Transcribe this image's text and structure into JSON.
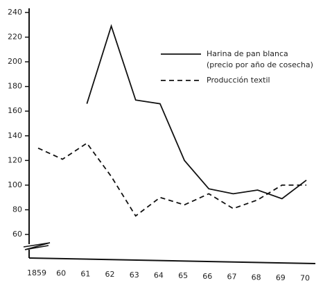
{
  "chart_data": {
    "type": "line",
    "categories": [
      "1859",
      "60",
      "61",
      "62",
      "63",
      "64",
      "65",
      "66",
      "67",
      "68",
      "69",
      "70"
    ],
    "series": [
      {
        "name": "Harina de pan blanca",
        "subname": "(precio por año de cosecha)",
        "color": "#111111",
        "dash": false,
        "values": [
          null,
          null,
          166,
          229,
          169,
          166,
          120,
          97,
          93,
          96,
          89,
          104
        ]
      },
      {
        "name": "Producción textil",
        "color": "#111111",
        "dash": true,
        "values": [
          130,
          121,
          134,
          107,
          75,
          90,
          84,
          93,
          81,
          88,
          100,
          100
        ]
      }
    ],
    "ylim": [
      50,
      240
    ],
    "yticks": [
      60,
      80,
      100,
      120,
      140,
      160,
      180,
      200,
      220,
      240
    ],
    "grid": false
  }
}
